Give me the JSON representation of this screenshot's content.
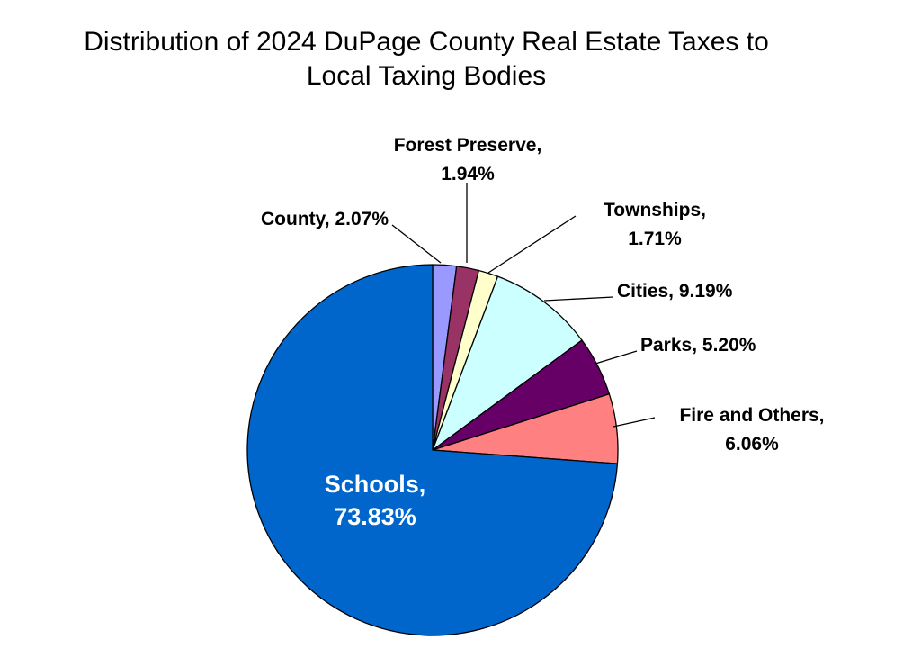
{
  "chart_data": {
    "type": "pie",
    "title_line1": "Distribution of 2024 DuPage County Real Estate Taxes to",
    "title_line2": "Local Taxing Bodies",
    "slices": [
      {
        "name": "County",
        "value": 2.07,
        "label_line1": "County, 2.07%",
        "label_line2": "",
        "color": "#9999ff"
      },
      {
        "name": "Forest Preserve",
        "value": 1.94,
        "label_line1": "Forest Preserve,",
        "label_line2": "1.94%",
        "color": "#993366"
      },
      {
        "name": "Townships",
        "value": 1.71,
        "label_line1": "Townships,",
        "label_line2": "1.71%",
        "color": "#ffffcc"
      },
      {
        "name": "Cities",
        "value": 9.19,
        "label_line1": "Cities, 9.19%",
        "label_line2": "",
        "color": "#ccffff"
      },
      {
        "name": "Parks",
        "value": 5.2,
        "label_line1": "Parks, 5.20%",
        "label_line2": "",
        "color": "#660066"
      },
      {
        "name": "Fire and Others",
        "value": 6.06,
        "label_line1": "Fire and Others,",
        "label_line2": "6.06%",
        "color": "#ff8080"
      },
      {
        "name": "Schools",
        "value": 73.83,
        "label_line1": "Schools,",
        "label_line2": "73.83%",
        "color": "#0066cc"
      }
    ],
    "start_angle_deg": 0,
    "direction": "clockwise"
  }
}
